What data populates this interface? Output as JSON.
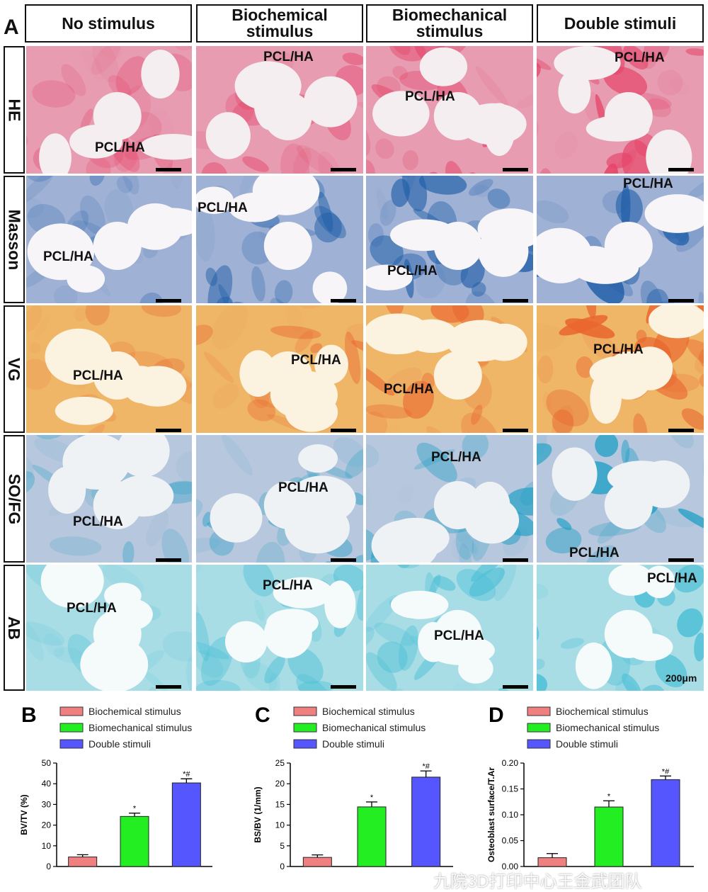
{
  "panel_a": {
    "letter": "A",
    "columns": [
      "No stimulus",
      "Biochemical stimulus",
      "Biomechanical stimulus",
      "Double stimuli"
    ],
    "rows": [
      {
        "label": "HE",
        "colors": {
          "bg": "#f4eef0",
          "tissue": "#e79cb2",
          "dense": "#e5466a"
        }
      },
      {
        "label": "Masson",
        "colors": {
          "bg": "#f7f5f8",
          "tissue": "#9fb1d4",
          "dense": "#1f5ea8"
        }
      },
      {
        "label": "VG",
        "colors": {
          "bg": "#fbf2e0",
          "tissue": "#efb668",
          "dense": "#e9662f"
        }
      },
      {
        "label": "SO/FG",
        "colors": {
          "bg": "#eef2f5",
          "tissue": "#b7c7dd",
          "dense": "#1f9fc5"
        }
      },
      {
        "label": "AB",
        "colors": {
          "bg": "#f5fafb",
          "tissue": "#a9dde6",
          "dense": "#4fc0d6"
        }
      }
    ],
    "scaffold_label": "PCL/HA",
    "scale_text": "200μm"
  },
  "chart_data": [
    {
      "type": "bar",
      "panel": "B",
      "categories": [
        "Biochemical stimulus",
        "Biomechanical stimulus",
        "Double stimuli"
      ],
      "values": [
        4.6,
        24.2,
        40.4
      ],
      "errors": [
        1.1,
        1.6,
        2.0
      ],
      "annotations": [
        "",
        "*",
        "*#"
      ],
      "ylabel": "BV/TV (%)",
      "ylim": [
        0,
        50
      ],
      "yticks": [
        "0",
        "10",
        "20",
        "30",
        "40",
        "50"
      ],
      "colors": [
        "#f08080",
        "#22ee22",
        "#5656ff"
      ]
    },
    {
      "type": "bar",
      "panel": "C",
      "categories": [
        "Biochemical stimulus",
        "Biomechanical stimulus",
        "Double stimuli"
      ],
      "values": [
        2.2,
        14.4,
        21.6
      ],
      "errors": [
        0.6,
        1.2,
        1.5
      ],
      "annotations": [
        "",
        "*",
        "*#"
      ],
      "ylabel": "BS/BV (1/mm)",
      "ylim": [
        0,
        25
      ],
      "yticks": [
        "0",
        "5",
        "10",
        "15",
        "20",
        "25"
      ],
      "colors": [
        "#f08080",
        "#22ee22",
        "#5656ff"
      ]
    },
    {
      "type": "bar",
      "panel": "D",
      "categories": [
        "Biochemical stimulus",
        "Biomechanical stimulus",
        "Double stimuli"
      ],
      "values": [
        0.017,
        0.115,
        0.168
      ],
      "errors": [
        0.008,
        0.012,
        0.007
      ],
      "annotations": [
        "",
        "*",
        "*#"
      ],
      "ylabel": "Osteoblast surface/T.Ar",
      "ylim": [
        0,
        0.2
      ],
      "yticks": [
        "0.00",
        "0.05",
        "0.10",
        "0.15",
        "0.20"
      ],
      "colors": [
        "#f08080",
        "#22ee22",
        "#5656ff"
      ]
    }
  ],
  "watermark": "九院3D打印中心王金武团队"
}
